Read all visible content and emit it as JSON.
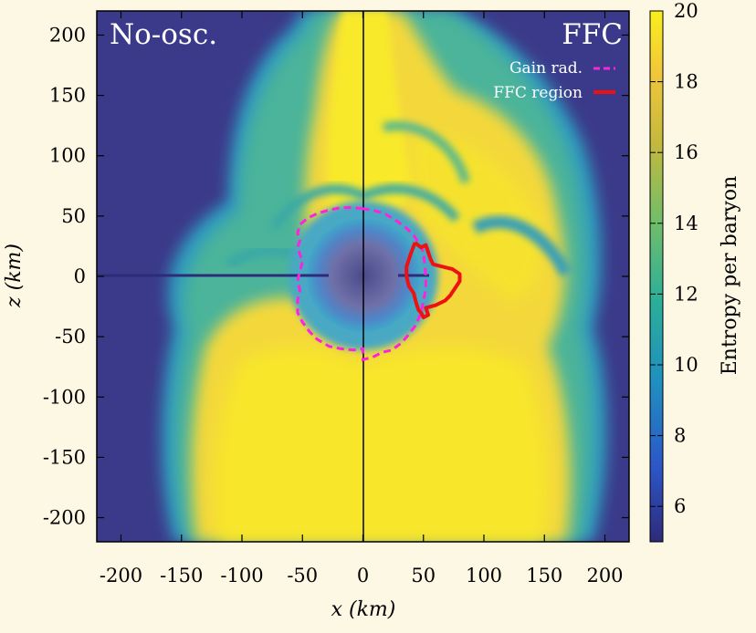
{
  "chart_data": {
    "type": "heatmap",
    "panels": [
      {
        "label": "No-osc.",
        "side": "left"
      },
      {
        "label": "FFC",
        "side": "right"
      }
    ],
    "xlabel": "x (km)",
    "ylabel": "z (km)",
    "xlim": [
      -220,
      220
    ],
    "ylim": [
      -220,
      220
    ],
    "xticks": [
      -200,
      -150,
      -100,
      -50,
      0,
      50,
      100,
      150,
      200
    ],
    "yticks": [
      200,
      150,
      100,
      50,
      0,
      -50,
      -100,
      -150,
      -200
    ],
    "colorbar": {
      "label": "Entropy per baryon",
      "range": [
        5,
        20
      ],
      "ticks": [
        6,
        8,
        10,
        12,
        14,
        16,
        18,
        20
      ],
      "colors": [
        "#2e2a7a",
        "#2c56c8",
        "#1f8fc0",
        "#2aae9a",
        "#6fbe6a",
        "#c3b93e",
        "#f0c63a",
        "#f9ee1e"
      ]
    },
    "legend": {
      "position": "top-right",
      "entries": [
        {
          "name": "Gain rad.",
          "color": "#ff22dd",
          "style": "dashed"
        },
        {
          "name": "FFC region",
          "color": "#ee1111",
          "style": "solid"
        }
      ]
    },
    "series": [
      {
        "name": "Gain rad.",
        "panel": "both",
        "points": [
          [
            0,
            56
          ],
          [
            -8,
            57
          ],
          [
            -18,
            57
          ],
          [
            -28,
            55
          ],
          [
            -38,
            52
          ],
          [
            -46,
            48
          ],
          [
            -52,
            43
          ],
          [
            -54,
            36
          ],
          [
            -52,
            30
          ],
          [
            -54,
            24
          ],
          [
            -52,
            18
          ],
          [
            -50,
            12
          ],
          [
            -52,
            5
          ],
          [
            -54,
            -4
          ],
          [
            -52,
            -12
          ],
          [
            -54,
            -20
          ],
          [
            -54,
            -30
          ],
          [
            -50,
            -38
          ],
          [
            -44,
            -46
          ],
          [
            -38,
            -52
          ],
          [
            -28,
            -58
          ],
          [
            -18,
            -60
          ],
          [
            -8,
            -61
          ],
          [
            0,
            -60
          ],
          [
            0,
            -69
          ],
          [
            8,
            -67
          ],
          [
            16,
            -63
          ],
          [
            24,
            -61
          ],
          [
            32,
            -55
          ],
          [
            38,
            -48
          ],
          [
            44,
            -40
          ],
          [
            48,
            -30
          ],
          [
            50,
            -20
          ],
          [
            52,
            -10
          ],
          [
            52,
            0
          ],
          [
            51,
            10
          ],
          [
            50,
            20
          ],
          [
            46,
            28
          ],
          [
            42,
            34
          ],
          [
            36,
            40
          ],
          [
            28,
            46
          ],
          [
            18,
            52
          ],
          [
            8,
            55
          ],
          [
            0,
            56
          ]
        ]
      },
      {
        "name": "FFC region",
        "panel": "FFC",
        "points": [
          [
            43,
            28
          ],
          [
            48,
            24
          ],
          [
            52,
            26
          ],
          [
            54,
            20
          ],
          [
            56,
            14
          ],
          [
            58,
            10
          ],
          [
            66,
            8
          ],
          [
            74,
            6
          ],
          [
            80,
            2
          ],
          [
            80,
            -4
          ],
          [
            76,
            -10
          ],
          [
            72,
            -16
          ],
          [
            68,
            -20
          ],
          [
            60,
            -24
          ],
          [
            52,
            -26
          ],
          [
            54,
            -32
          ],
          [
            50,
            -34
          ],
          [
            48,
            -30
          ],
          [
            46,
            -28
          ],
          [
            44,
            -22
          ],
          [
            42,
            -14
          ],
          [
            38,
            -8
          ],
          [
            36,
            0
          ],
          [
            36,
            8
          ],
          [
            38,
            14
          ],
          [
            40,
            20
          ],
          [
            43,
            28
          ]
        ]
      }
    ]
  }
}
